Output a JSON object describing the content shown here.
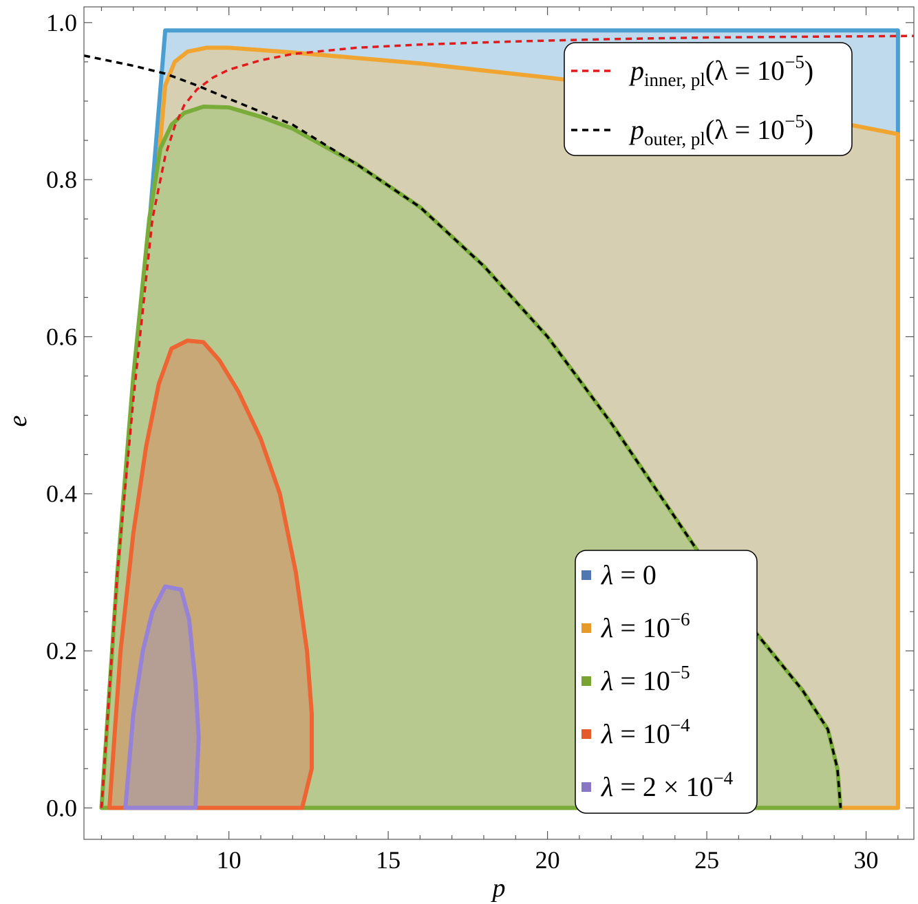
{
  "chart_data": {
    "type": "area",
    "xlabel": "p",
    "ylabel": "e",
    "xlim": [
      5.45,
      31.5
    ],
    "ylim": [
      -0.04,
      1.02
    ],
    "x_ticks": [
      {
        "value": 10,
        "label": "10"
      },
      {
        "value": 15,
        "label": "15"
      },
      {
        "value": 20,
        "label": "20"
      },
      {
        "value": 25,
        "label": "25"
      },
      {
        "value": 30,
        "label": "30"
      }
    ],
    "y_ticks": [
      {
        "value": 0.0,
        "label": "0.0"
      },
      {
        "value": 0.2,
        "label": "0.2"
      },
      {
        "value": 0.4,
        "label": "0.4"
      },
      {
        "value": 0.6,
        "label": "0.6"
      },
      {
        "value": 0.8,
        "label": "0.8"
      },
      {
        "value": 1.0,
        "label": "1.0"
      }
    ],
    "grid": false,
    "series": [
      {
        "name": "λ = 0",
        "color": "#4a9fd0",
        "fill": "#bfdaec",
        "points": [
          [
            6.0,
            0.0
          ],
          [
            8.0,
            0.99
          ],
          [
            31.0,
            0.99
          ],
          [
            31.0,
            0.0
          ]
        ]
      },
      {
        "name": "λ = 10^−6",
        "color": "#f0a531",
        "fill": "#d6cfb2",
        "points": [
          [
            6.0,
            0.0
          ],
          [
            8.0,
            0.92
          ],
          [
            8.3,
            0.95
          ],
          [
            8.7,
            0.963
          ],
          [
            9.3,
            0.968
          ],
          [
            10.0,
            0.968
          ],
          [
            12.0,
            0.962
          ],
          [
            16.0,
            0.948
          ],
          [
            20.0,
            0.93
          ],
          [
            25.0,
            0.905
          ],
          [
            31.0,
            0.858
          ],
          [
            31.0,
            0.0
          ]
        ]
      },
      {
        "name": "λ = 10^−5",
        "color": "#7aac3a",
        "fill": "#b8c990",
        "points": [
          [
            6.0,
            0.0
          ],
          [
            6.5,
            0.3
          ],
          [
            7.0,
            0.55
          ],
          [
            7.5,
            0.75
          ],
          [
            7.85,
            0.84
          ],
          [
            8.2,
            0.87
          ],
          [
            8.6,
            0.885
          ],
          [
            9.2,
            0.893
          ],
          [
            10.0,
            0.892
          ],
          [
            11.0,
            0.88
          ],
          [
            12.0,
            0.865
          ],
          [
            14.0,
            0.82
          ],
          [
            16.0,
            0.765
          ],
          [
            18.0,
            0.69
          ],
          [
            20.0,
            0.6
          ],
          [
            22.0,
            0.49
          ],
          [
            24.0,
            0.37
          ],
          [
            26.0,
            0.25
          ],
          [
            28.0,
            0.15
          ],
          [
            28.8,
            0.1
          ],
          [
            29.1,
            0.05
          ],
          [
            29.2,
            0.0
          ],
          [
            28.3,
            0.0
          ]
        ]
      },
      {
        "name": "λ = 10^−4",
        "color": "#ee6534",
        "fill": "#c8a877",
        "points": [
          [
            6.25,
            0.0
          ],
          [
            6.6,
            0.2
          ],
          [
            7.0,
            0.35
          ],
          [
            7.4,
            0.46
          ],
          [
            7.8,
            0.54
          ],
          [
            8.2,
            0.585
          ],
          [
            8.7,
            0.595
          ],
          [
            9.2,
            0.593
          ],
          [
            9.7,
            0.57
          ],
          [
            10.3,
            0.53
          ],
          [
            11.0,
            0.47
          ],
          [
            11.6,
            0.4
          ],
          [
            12.1,
            0.3
          ],
          [
            12.45,
            0.2
          ],
          [
            12.6,
            0.12
          ],
          [
            12.6,
            0.05
          ],
          [
            12.3,
            0.0
          ]
        ]
      },
      {
        "name": "λ = 2 × 10^−4",
        "color": "#9682d6",
        "fill": "#b59e94",
        "points": [
          [
            6.75,
            0.0
          ],
          [
            7.0,
            0.12
          ],
          [
            7.3,
            0.2
          ],
          [
            7.6,
            0.25
          ],
          [
            8.0,
            0.282
          ],
          [
            8.5,
            0.278
          ],
          [
            8.75,
            0.24
          ],
          [
            8.95,
            0.16
          ],
          [
            9.05,
            0.09
          ],
          [
            8.95,
            0.0
          ]
        ]
      }
    ],
    "curves": [
      {
        "name": "p_inner,pl(λ = 10^−5)",
        "color": "#e31a1c",
        "style": "dashed",
        "points": [
          [
            6.0,
            0.0
          ],
          [
            6.5,
            0.3
          ],
          [
            7.0,
            0.52
          ],
          [
            7.6,
            0.75
          ],
          [
            8.0,
            0.83
          ],
          [
            8.3,
            0.868
          ],
          [
            8.6,
            0.895
          ],
          [
            9.0,
            0.915
          ],
          [
            9.5,
            0.93
          ],
          [
            10.0,
            0.94
          ],
          [
            11.0,
            0.952
          ],
          [
            12.0,
            0.96
          ],
          [
            14.0,
            0.968
          ],
          [
            16.0,
            0.972
          ],
          [
            19.0,
            0.976
          ],
          [
            22.0,
            0.979
          ],
          [
            25.0,
            0.981
          ],
          [
            28.0,
            0.982
          ],
          [
            31.5,
            0.983
          ]
        ]
      },
      {
        "name": "p_outer,pl(λ = 10^−5)",
        "color": "#000000",
        "style": "dashed",
        "points": [
          [
            5.45,
            0.958
          ],
          [
            7.0,
            0.945
          ],
          [
            8.0,
            0.935
          ],
          [
            9.0,
            0.92
          ],
          [
            10.0,
            0.903
          ],
          [
            12.0,
            0.87
          ],
          [
            14.0,
            0.82
          ],
          [
            16.0,
            0.765
          ],
          [
            18.0,
            0.69
          ],
          [
            20.0,
            0.6
          ],
          [
            22.0,
            0.49
          ],
          [
            24.0,
            0.37
          ],
          [
            26.0,
            0.25
          ],
          [
            28.0,
            0.15
          ],
          [
            28.8,
            0.1
          ],
          [
            29.1,
            0.05
          ],
          [
            29.2,
            0.0
          ]
        ]
      }
    ],
    "legend_top_right": [
      {
        "symbol": "p",
        "subscript": "inner, pl",
        "arg": "(λ = 10",
        "exponent": "−5",
        "close": ")",
        "color": "#e31a1c"
      },
      {
        "symbol": "p",
        "subscript": "outer, pl",
        "arg": "(λ = 10",
        "exponent": "−5",
        "close": ")",
        "color": "#000000"
      }
    ],
    "legend_bottom_right": [
      {
        "lhs": "λ",
        "rhs": " = 0",
        "exponent": "",
        "color": "#4f78b2"
      },
      {
        "lhs": "λ",
        "rhs": " = 10",
        "exponent": "−6",
        "color": "#e69a28"
      },
      {
        "lhs": "λ",
        "rhs": " = 10",
        "exponent": "−5",
        "color": "#7aa432"
      },
      {
        "lhs": "λ",
        "rhs": " = 10",
        "exponent": "−4",
        "color": "#e55b2c"
      },
      {
        "lhs": "λ",
        "rhs": " = 2 × 10",
        "exponent": "−4",
        "color": "#8a77c4"
      }
    ]
  }
}
